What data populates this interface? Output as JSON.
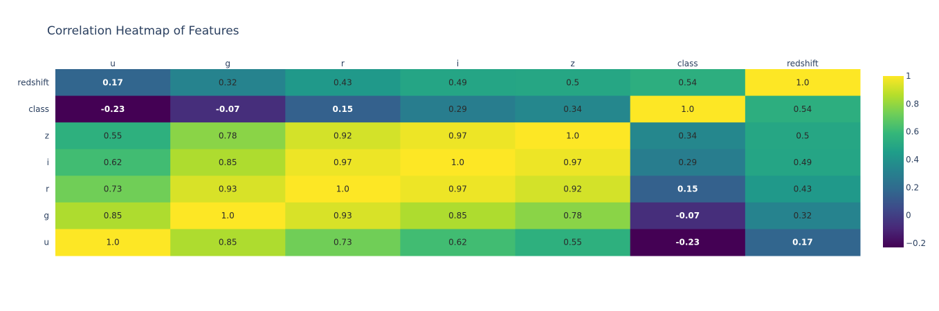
{
  "chart_data": {
    "type": "heatmap",
    "title": "Correlation Heatmap of Features",
    "x_labels": [
      "u",
      "g",
      "r",
      "i",
      "z",
      "class",
      "redshift"
    ],
    "y_labels_top_to_bottom": [
      "redshift",
      "class",
      "z",
      "i",
      "r",
      "g",
      "u"
    ],
    "matrix": [
      [
        0.17,
        0.32,
        0.43,
        0.49,
        0.5,
        0.54,
        1.0
      ],
      [
        -0.23,
        -0.07,
        0.15,
        0.29,
        0.34,
        1.0,
        0.54
      ],
      [
        0.55,
        0.78,
        0.92,
        0.97,
        1.0,
        0.34,
        0.5
      ],
      [
        0.62,
        0.85,
        0.97,
        1.0,
        0.97,
        0.29,
        0.49
      ],
      [
        0.73,
        0.93,
        1.0,
        0.97,
        0.92,
        0.15,
        0.43
      ],
      [
        0.85,
        1.0,
        0.93,
        0.85,
        0.78,
        -0.07,
        0.32
      ],
      [
        1.0,
        0.85,
        0.73,
        0.62,
        0.55,
        -0.23,
        0.17
      ]
    ],
    "labels": [
      [
        "0.17",
        "0.32",
        "0.43",
        "0.49",
        "0.5",
        "0.54",
        "1.0"
      ],
      [
        "-0.23",
        "-0.07",
        "0.15",
        "0.29",
        "0.34",
        "1.0",
        "0.54"
      ],
      [
        "0.55",
        "0.78",
        "0.92",
        "0.97",
        "1.0",
        "0.34",
        "0.5"
      ],
      [
        "0.62",
        "0.85",
        "0.97",
        "1.0",
        "0.97",
        "0.29",
        "0.49"
      ],
      [
        "0.73",
        "0.93",
        "1.0",
        "0.97",
        "0.92",
        "0.15",
        "0.43"
      ],
      [
        "0.85",
        "1.0",
        "0.93",
        "0.85",
        "0.78",
        "-0.07",
        "0.32"
      ],
      [
        "1.0",
        "0.85",
        "0.73",
        "0.62",
        "0.55",
        "-0.23",
        "0.17"
      ]
    ],
    "colorscale": "Viridis",
    "zmin": -0.23,
    "zmax": 1.0,
    "colorbar_ticks": [
      1,
      0.8,
      0.6,
      0.4,
      0.2,
      0,
      -0.2
    ],
    "colorbar_tick_labels": [
      "1",
      "0.8",
      "0.6",
      "0.4",
      "0.2",
      "0",
      "−0.2"
    ],
    "x_axis_position": "top",
    "legend": "colorbar-right"
  }
}
